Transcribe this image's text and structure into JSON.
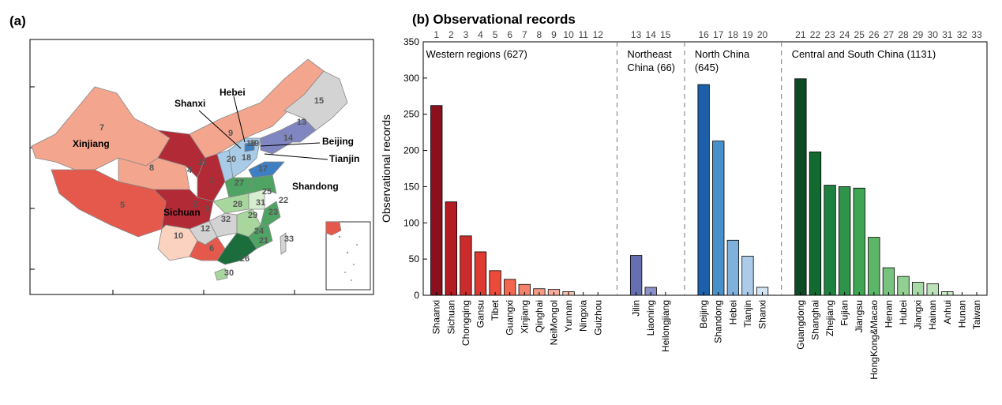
{
  "panel_a": {
    "label": "(a)",
    "province_numbers": [
      "1",
      "2",
      "3",
      "4",
      "5",
      "6",
      "7",
      "8",
      "9",
      "10",
      "11",
      "12",
      "13",
      "14",
      "15",
      "16",
      "17",
      "18",
      "19",
      "20",
      "21",
      "22",
      "23",
      "24",
      "25",
      "26",
      "27",
      "28",
      "29",
      "30",
      "31",
      "32",
      "33"
    ],
    "map_labels": [
      "Xinjiang",
      "Sichuan",
      "Shanxi",
      "Hebei",
      "Beijing",
      "Tianjin",
      "Shandong"
    ],
    "colors": {
      "western_dark": "#b22a36",
      "western_mid": "#e5594c",
      "western_light": "#f4a58d",
      "western_pale": "#fbd2bf",
      "northeast": "#7f86c2",
      "north": "#3d7fc2",
      "north_light": "#a8cbe8",
      "central_dark": "#1b6e3b",
      "central_mid": "#4fa463",
      "central_light": "#a8d79d",
      "central_pale": "#d6edcf",
      "nodata": "#d3d3d3"
    }
  },
  "chart_data": {
    "type": "bar",
    "title": "(b) Observational records",
    "ylabel": "Observational records",
    "ylim": [
      0,
      350
    ],
    "yticks": [
      0,
      50,
      100,
      150,
      200,
      250,
      300,
      350
    ],
    "top_indices": [
      "1",
      "2",
      "3",
      "4",
      "5",
      "6",
      "7",
      "8",
      "9",
      "10",
      "11",
      "12",
      "13",
      "14",
      "15",
      "16",
      "17",
      "18",
      "19",
      "20",
      "21",
      "22",
      "23",
      "24",
      "25",
      "26",
      "27",
      "28",
      "29",
      "30",
      "31",
      "32",
      "33"
    ],
    "groups": [
      {
        "label_lines": [
          "Western regions (627)"
        ],
        "categories": [
          "Shaanxi",
          "Sichuan",
          "Chongqing",
          "Gansu",
          "Tibet",
          "Guangxi",
          "Xinjiang",
          "Qinghai",
          "NeiMongol",
          "Yunnan",
          "Ningxia",
          "Guizhou"
        ],
        "values": [
          262,
          129,
          82,
          60,
          34,
          22,
          15,
          9,
          8,
          5,
          0,
          0
        ],
        "colors": [
          "#8b0f1c",
          "#b31c23",
          "#cc2b2b",
          "#de3a32",
          "#ec4b3a",
          "#f2674f",
          "#f4826a",
          "#f59a84",
          "#f6ae9a",
          "#f8c2b1",
          "#fbd6c8",
          "#fde6dc"
        ]
      },
      {
        "label_lines": [
          "Northeast",
          "China (66)"
        ],
        "categories": [
          "Jilin",
          "Liaoning",
          "Heilongjiang"
        ],
        "values": [
          55,
          11,
          0
        ],
        "colors": [
          "#6670b0",
          "#8a91c6",
          "#b9bde0"
        ]
      },
      {
        "label_lines": [
          "North China",
          "(645)"
        ],
        "categories": [
          "Beijing",
          "Shandong",
          "Hebei",
          "Tianjin",
          "Shanxi"
        ],
        "values": [
          291,
          213,
          76,
          54,
          11
        ],
        "colors": [
          "#1d5fa8",
          "#4790c9",
          "#7fb1dc",
          "#abcbe8",
          "#d3e4f4"
        ]
      },
      {
        "label_lines": [
          "Central and South China (1131)"
        ],
        "categories": [
          "Guangdong",
          "Shanghai",
          "Zhejiang",
          "Fujian",
          "Jiangsu",
          "HongKong&Macao",
          "Henan",
          "Hubei",
          "Jiangxi",
          "Hainan",
          "Anhui",
          "Hunan",
          "Taiwan"
        ],
        "values": [
          299,
          198,
          152,
          150,
          148,
          80,
          38,
          26,
          18,
          16,
          5,
          0,
          0
        ],
        "colors": [
          "#0b4a22",
          "#126a31",
          "#1f813f",
          "#2f9349",
          "#3ea553",
          "#5cb668",
          "#78c37e",
          "#93cf93",
          "#a9d9a6",
          "#bde2b9",
          "#cfeacb",
          "#e0f1dc",
          "#edf7ea"
        ]
      }
    ]
  }
}
